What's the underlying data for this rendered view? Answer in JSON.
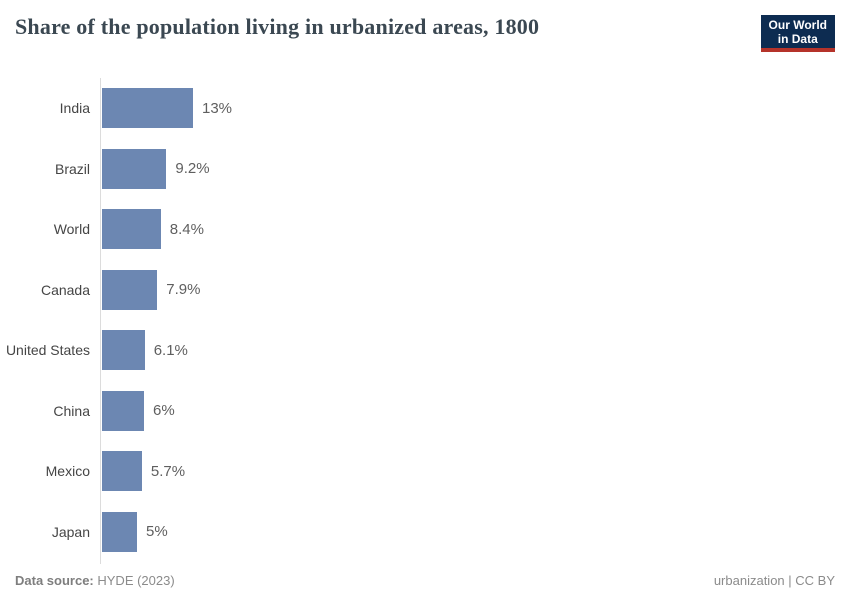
{
  "header": {
    "title": "Share of the population living in urbanized areas, 1800",
    "logo_line1": "Our World",
    "logo_line2": "in Data"
  },
  "chart_data": {
    "type": "bar",
    "orientation": "horizontal",
    "title": "Share of the population living in urbanized areas, 1800",
    "categories": [
      "India",
      "Brazil",
      "World",
      "Canada",
      "United States",
      "China",
      "Mexico",
      "Japan"
    ],
    "values": [
      13,
      9.2,
      8.4,
      7.9,
      6.1,
      6,
      5.7,
      5
    ],
    "value_labels": [
      "13%",
      "9.2%",
      "8.4%",
      "7.9%",
      "6.1%",
      "6%",
      "5.7%",
      "5%"
    ],
    "xlabel": "",
    "ylabel": "",
    "xlim": [
      0,
      13
    ],
    "grid": false,
    "legend": false,
    "bar_color": "#6c87b2",
    "axis_line_color": "#dcdcdc"
  },
  "footer": {
    "source_label": "Data source:",
    "source_value": "HYDE (2023)",
    "note_link": "urbanization",
    "separator": " | ",
    "license": "CC BY"
  },
  "colors": {
    "bar": "#6c87b2",
    "logo_navy": "#0d2c51",
    "logo_red": "#b5332a",
    "title_text": "#3b4852"
  }
}
